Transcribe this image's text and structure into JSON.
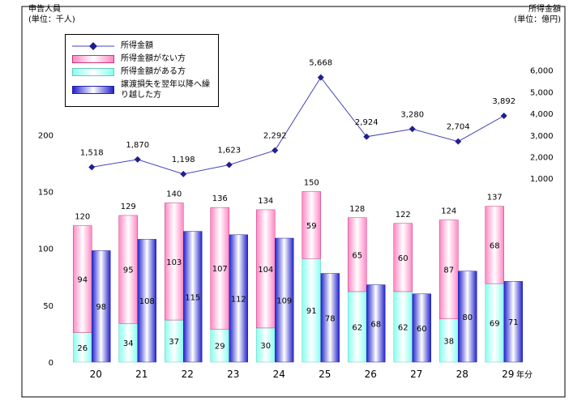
{
  "chart_data": {
    "type": "bar-line",
    "y_title_lines": [
      "申告人員",
      "(単位：千人)"
    ],
    "y2_title_lines": [
      "所得金額",
      "(単位：億円)"
    ],
    "x_label": "年分",
    "categories": [
      "20",
      "21",
      "22",
      "23",
      "24",
      "25",
      "26",
      "27",
      "28",
      "29"
    ],
    "ylim": [
      0,
      290
    ],
    "yticks": [
      0,
      50,
      100,
      150,
      200
    ],
    "y2lim": [
      -7500,
      7750
    ],
    "y2ticks": [
      {
        "value": 1000,
        "label": "1,000"
      },
      {
        "value": 2000,
        "label": "2,000"
      },
      {
        "value": 3000,
        "label": "3,000"
      },
      {
        "value": 4000,
        "label": "4,000"
      },
      {
        "value": 5000,
        "label": "5,000"
      },
      {
        "value": 6000,
        "label": "6,000"
      }
    ],
    "totals": [
      120,
      129,
      140,
      136,
      134,
      150,
      128,
      122,
      124,
      137
    ],
    "series": [
      {
        "name": "所得金額",
        "kind": "line",
        "axis": "y2",
        "color": "#1f1f8f",
        "values": [
          1518,
          1870,
          1198,
          1623,
          2292,
          5668,
          2924,
          3280,
          2704,
          3892
        ],
        "value_labels": [
          "1,518",
          "1,870",
          "1,198",
          "1,623",
          "2,292",
          "5,668",
          "2,924",
          "3,280",
          "2,704",
          "3,892"
        ]
      },
      {
        "name": "所得金額がない方",
        "kind": "stack-top",
        "color": "#ff99cc",
        "values": [
          94,
          95,
          103,
          107,
          104,
          59,
          65,
          60,
          87,
          68
        ]
      },
      {
        "name": "所得金額がある方",
        "kind": "stack-bottom",
        "color": "#99ffee",
        "values": [
          26,
          34,
          37,
          29,
          30,
          91,
          62,
          62,
          38,
          69
        ]
      },
      {
        "name": "譲渡損失を翌年以降へ繰り越した方",
        "kind": "bar",
        "color": "#3333dd",
        "values": [
          98,
          108,
          115,
          112,
          109,
          78,
          68,
          60,
          80,
          71
        ]
      }
    ]
  }
}
